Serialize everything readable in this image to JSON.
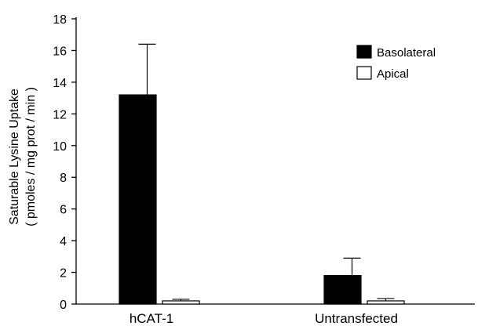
{
  "chart_data": {
    "type": "bar",
    "categories": [
      "hCAT-1",
      "Untransfected"
    ],
    "series": [
      {
        "name": "Basolateral",
        "values": [
          13.2,
          1.8
        ],
        "errors": [
          3.2,
          1.1
        ],
        "color": "#000000"
      },
      {
        "name": "Apical",
        "values": [
          0.2,
          0.2
        ],
        "errors": [
          0.1,
          0.15
        ],
        "color": "#ffffff"
      }
    ],
    "title": "",
    "xlabel": "",
    "ylabel": [
      "Saturable Lysine Uptake",
      "( pmoles / mg prot / min )"
    ],
    "ylim": [
      0,
      18
    ],
    "yticks": [
      0,
      2,
      4,
      6,
      8,
      10,
      12,
      14,
      16,
      18
    ],
    "grid": false,
    "legend_position": "top-right"
  }
}
